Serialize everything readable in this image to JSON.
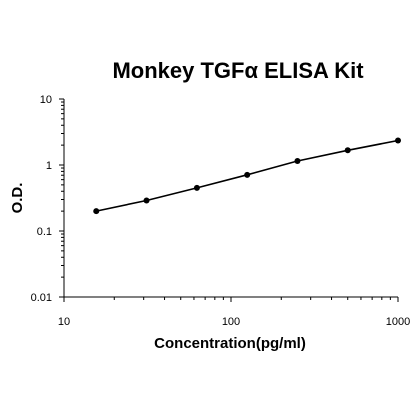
{
  "chart_data": {
    "type": "line",
    "title": "Monkey TGFα ELISA Kit",
    "xlabel": "Concentration(pg/ml)",
    "ylabel": "O.D.",
    "x_scale": "log",
    "y_scale": "log",
    "xlim": [
      10,
      1000
    ],
    "ylim": [
      0.01,
      10
    ],
    "x_ticks": [
      "10",
      "100",
      "1000"
    ],
    "y_ticks": [
      "0.01",
      "0.1",
      "1",
      "10"
    ],
    "grid": false,
    "legend": "none",
    "series": [
      {
        "points": [
          {
            "x": 15.6,
            "y": 0.2
          },
          {
            "x": 31.2,
            "y": 0.29
          },
          {
            "x": 62.5,
            "y": 0.45
          },
          {
            "x": 125,
            "y": 0.71
          },
          {
            "x": 250,
            "y": 1.15
          },
          {
            "x": 500,
            "y": 1.67
          },
          {
            "x": 1000,
            "y": 2.35
          }
        ]
      }
    ],
    "colors": {
      "line": "#000000",
      "marker": "#000000",
      "axis": "#000000"
    }
  }
}
